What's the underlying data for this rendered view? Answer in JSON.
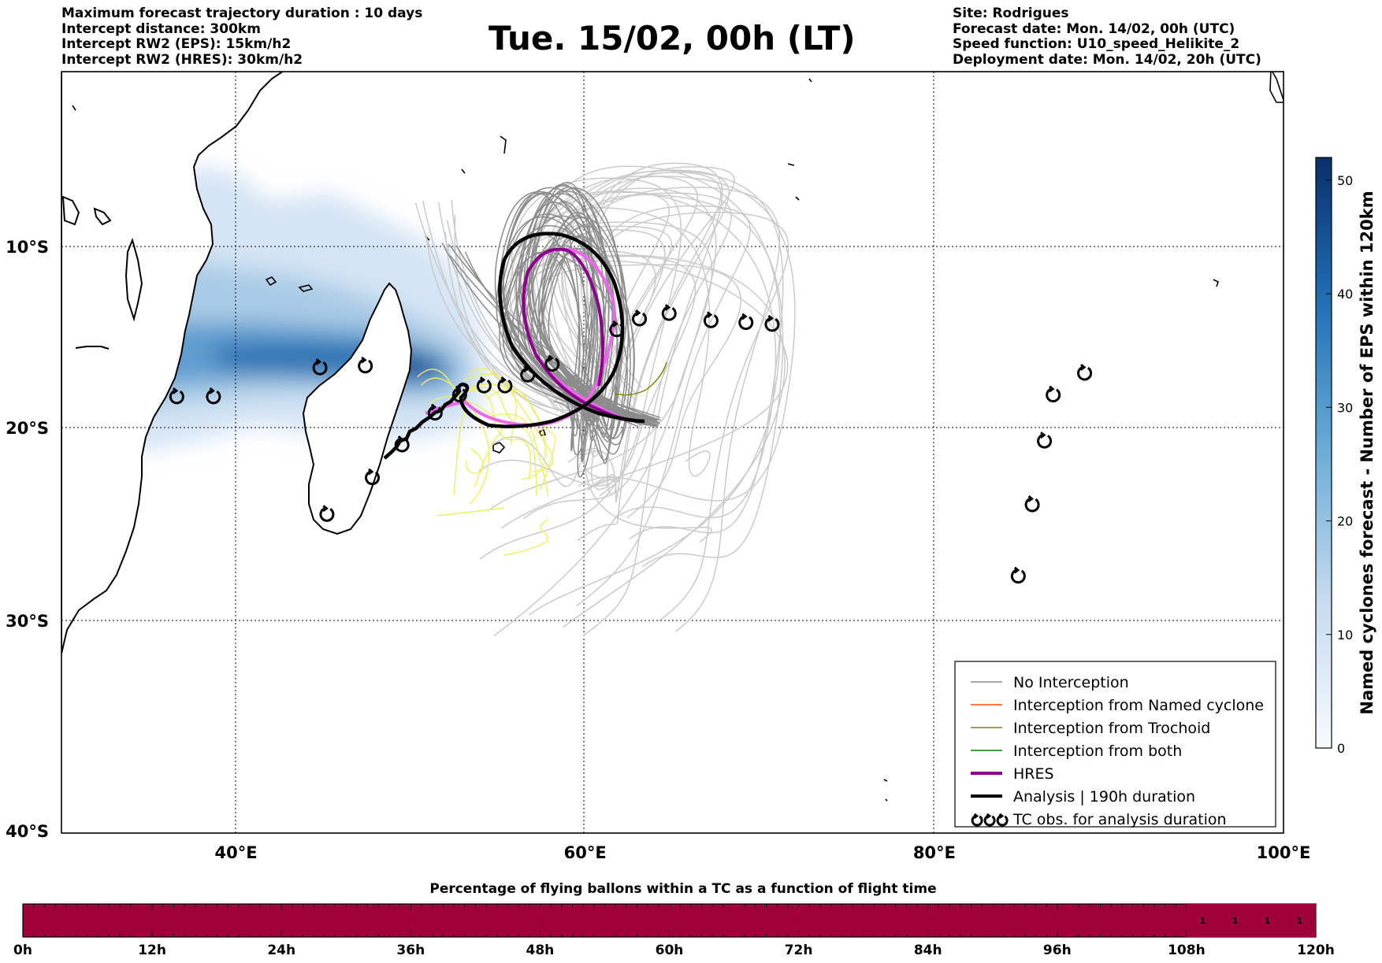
{
  "header": {
    "left_lines": [
      "Maximum forecast trajectory duration : 10 days",
      "Intercept distance: 300km",
      "Intercept RW2 (EPS):  15km/h2",
      "Intercept RW2 (HRES): 30km/h2"
    ],
    "title": "Tue. 15/02, 00h (LT)",
    "right_lines": [
      "Site: Rodrigues",
      "Forecast date: Mon. 14/02, 00h (UTC)",
      "Speed function: U10_speed_Helikite_2",
      "Deployment date: Mon. 14/02, 20h (UTC)"
    ]
  },
  "map": {
    "lon_range": [
      30,
      100
    ],
    "lat_range": [
      -40,
      1
    ],
    "lon_ticks": [
      {
        "value": 40,
        "label": "40°E"
      },
      {
        "value": 60,
        "label": "60°E"
      },
      {
        "value": 80,
        "label": "80°E"
      },
      {
        "value": 100,
        "label": "100°E"
      }
    ],
    "lat_ticks": [
      {
        "value": -10,
        "label": "10°S"
      },
      {
        "value": -20,
        "label": "20°S"
      },
      {
        "value": -30,
        "label": "30°S"
      },
      {
        "value": -40,
        "label": "40°S"
      }
    ],
    "grid": "dotted",
    "colors": {
      "no_interception": "#8c8c8c",
      "light_track": "#c8c8c8",
      "named_cyclone": "#ff5500",
      "trochoid": "#808000",
      "both": "#008000",
      "hres": "#8b008b",
      "hres_light": "#ee66ee",
      "analysis": "#000000",
      "yellow_track": "#eeee66"
    },
    "tc_obs": [
      [
        36.6,
        -18.3
      ],
      [
        38.7,
        -18.3
      ],
      [
        44.8,
        -16.7
      ],
      [
        47.4,
        -16.6
      ],
      [
        45.2,
        -24.5
      ],
      [
        47.8,
        -22.6
      ],
      [
        49.5,
        -20.9
      ],
      [
        51.4,
        -19.2
      ],
      [
        52.8,
        -18.2
      ],
      [
        54.2,
        -17.7
      ],
      [
        55.4,
        -17.7
      ],
      [
        56.7,
        -17.1
      ],
      [
        58.1,
        -16.5
      ],
      [
        61.8,
        -14.6
      ],
      [
        63.1,
        -14.0
      ],
      [
        64.8,
        -13.7
      ],
      [
        67.2,
        -14.1
      ],
      [
        69.2,
        -14.2
      ],
      [
        70.7,
        -14.3
      ],
      [
        88.6,
        -17.0
      ],
      [
        86.8,
        -18.2
      ],
      [
        86.3,
        -20.7
      ],
      [
        85.6,
        -24.0
      ],
      [
        84.8,
        -27.7
      ]
    ],
    "legend": [
      {
        "label": "No Interception",
        "color": "#8c8c8c",
        "style": "thin"
      },
      {
        "label": "Interception from Named cyclone",
        "color": "#ff5500",
        "style": "thin"
      },
      {
        "label": "Interception from Trochoid",
        "color": "#808000",
        "style": "thin"
      },
      {
        "label": "Interception from both",
        "color": "#008000",
        "style": "thin"
      },
      {
        "label": "HRES",
        "color": "#8b008b",
        "style": "thick"
      },
      {
        "label": "Analysis | 190h duration",
        "color": "#000000",
        "style": "thick"
      },
      {
        "label": "TC obs. for analysis duration",
        "color": "#000000",
        "style": "tc"
      }
    ]
  },
  "colorbar": {
    "label": "Named cyclones forecast - Number of EPS within 120km",
    "min": 0,
    "max": 52,
    "ticks": [
      "0",
      "10",
      "20",
      "30",
      "40",
      "50"
    ],
    "tick_values": [
      0,
      10,
      20,
      30,
      40,
      50
    ],
    "colors": [
      "#f7fbff",
      "#c6dbef",
      "#6baed6",
      "#2171b5",
      "#08306b"
    ]
  },
  "timeline": {
    "title": "Percentage of flying ballons within a TC as a function of flight time",
    "fill_color": "#a0003a",
    "ticks": [
      "0h",
      "12h",
      "24h",
      "36h",
      "48h",
      "60h",
      "72h",
      "84h",
      "96h",
      "108h",
      "120h"
    ],
    "range_hours": [
      0,
      120
    ],
    "segments": [
      {
        "from": 108,
        "to": 111,
        "value": "1"
      },
      {
        "from": 111,
        "to": 114,
        "value": "1"
      },
      {
        "from": 114,
        "to": 117,
        "value": "1"
      },
      {
        "from": 117,
        "to": 120,
        "value": "1"
      }
    ]
  }
}
